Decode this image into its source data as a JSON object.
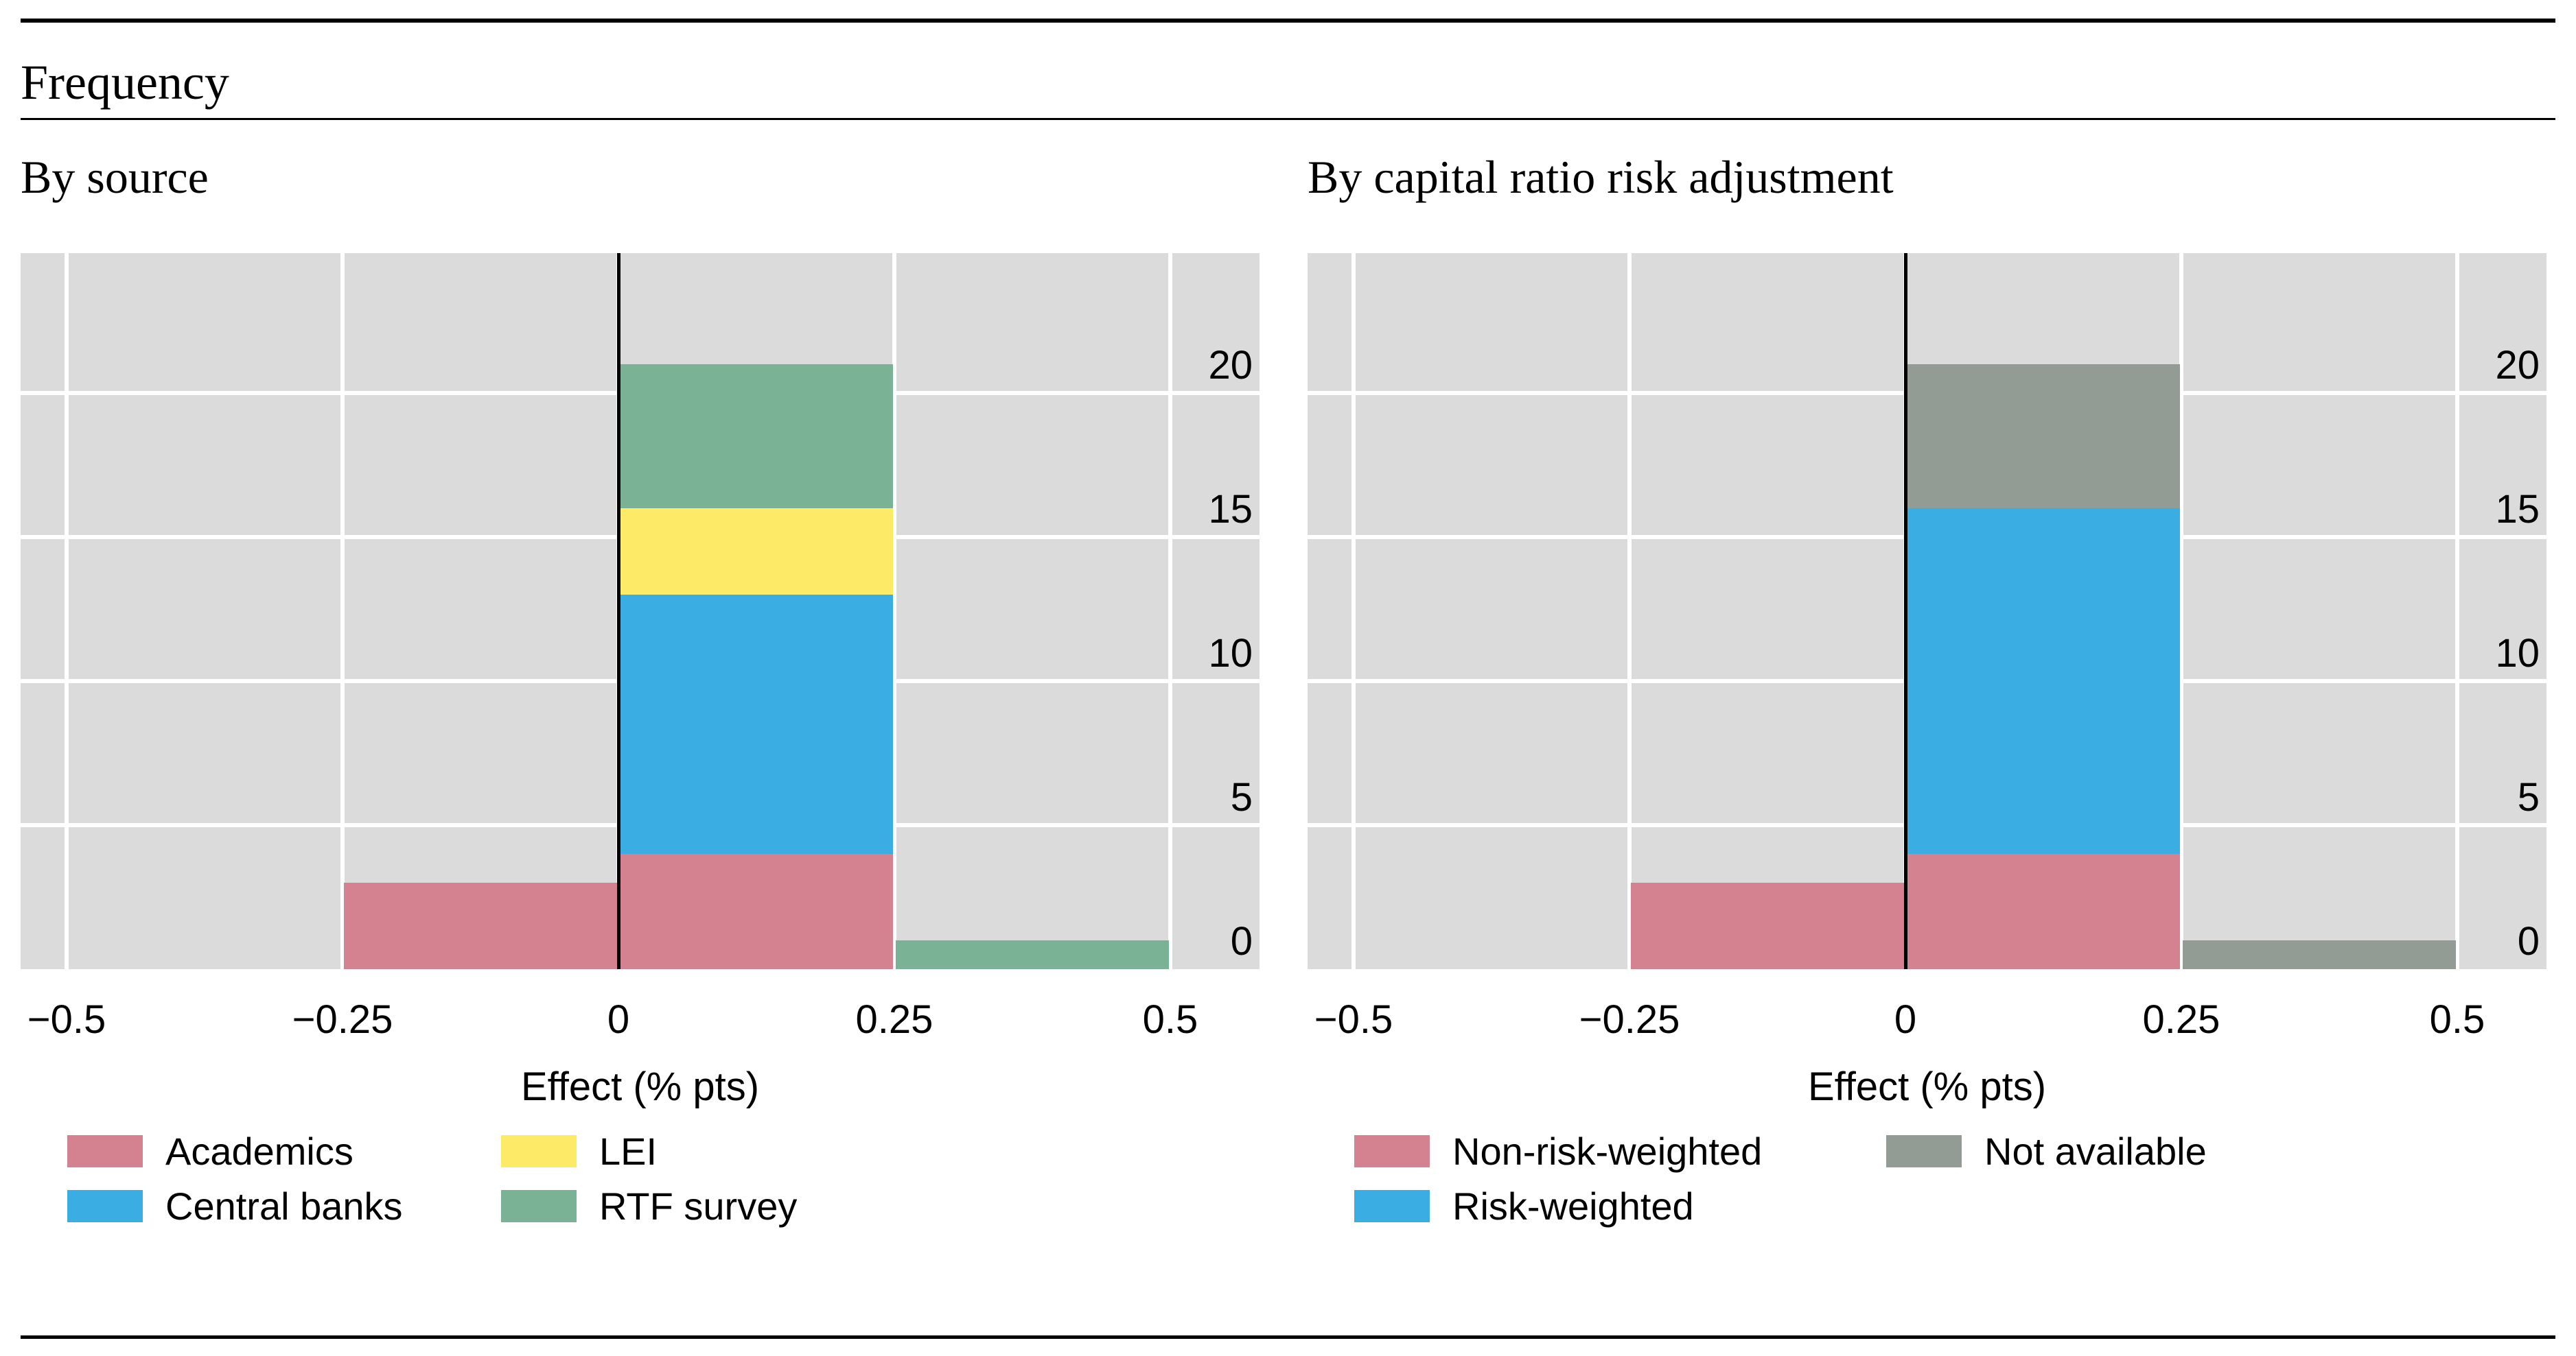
{
  "header": {
    "title": "Frequency"
  },
  "colors": {
    "plot_background": "#dbdbdb",
    "gridline": "#ffffff",
    "zero_line": "#000000",
    "academics_pink": "#d48290",
    "central_banks_blue": "#3aade2",
    "lei_yellow": "#fdea66",
    "rtf_green": "#79b294",
    "not_available_gray": "#939b95"
  },
  "chart_data": [
    {
      "type": "bar",
      "stacked": true,
      "subtitle": "By source",
      "xlabel": "Effect (% pts)",
      "x_tick_labels": [
        "−0.5",
        "−0.25",
        "0",
        "0.25",
        "0.5"
      ],
      "x_tick_values": [
        -0.5,
        -0.25,
        0,
        0.25,
        0.5
      ],
      "y_ticks": [
        0,
        5,
        10,
        15,
        20
      ],
      "ylim": [
        0,
        24.9
      ],
      "grid": true,
      "legend_position": "below",
      "bins": [
        {
          "range": [
            -0.25,
            0
          ],
          "segments": [
            {
              "name": "Academics",
              "value": 3,
              "color": "#d48290"
            }
          ]
        },
        {
          "range": [
            0,
            0.25
          ],
          "segments": [
            {
              "name": "Academics",
              "value": 4,
              "color": "#d48290"
            },
            {
              "name": "Central banks",
              "value": 9,
              "color": "#3aade2"
            },
            {
              "name": "LEI",
              "value": 3,
              "color": "#fdea66"
            },
            {
              "name": "RTF survey",
              "value": 5,
              "color": "#79b294"
            }
          ]
        },
        {
          "range": [
            0.25,
            0.5
          ],
          "segments": [
            {
              "name": "RTF survey",
              "value": 1,
              "color": "#79b294"
            }
          ]
        }
      ],
      "legend": [
        {
          "label": "Academics",
          "color": "#d48290"
        },
        {
          "label": "Central banks",
          "color": "#3aade2"
        },
        {
          "label": "LEI",
          "color": "#fdea66"
        },
        {
          "label": "RTF survey",
          "color": "#79b294"
        }
      ]
    },
    {
      "type": "bar",
      "stacked": true,
      "subtitle": "By capital ratio risk adjustment",
      "xlabel": "Effect (% pts)",
      "x_tick_labels": [
        "−0.5",
        "−0.25",
        "0",
        "0.25",
        "0.5"
      ],
      "x_tick_values": [
        -0.5,
        -0.25,
        0,
        0.25,
        0.5
      ],
      "y_ticks": [
        0,
        5,
        10,
        15,
        20
      ],
      "ylim": [
        0,
        24.9
      ],
      "grid": true,
      "legend_position": "below",
      "bins": [
        {
          "range": [
            -0.25,
            0
          ],
          "segments": [
            {
              "name": "Non-risk-weighted",
              "value": 3,
              "color": "#d48290"
            }
          ]
        },
        {
          "range": [
            0,
            0.25
          ],
          "segments": [
            {
              "name": "Non-risk-weighted",
              "value": 4,
              "color": "#d48290"
            },
            {
              "name": "Risk-weighted",
              "value": 12,
              "color": "#3aade2"
            },
            {
              "name": "Not available",
              "value": 5,
              "color": "#939b95"
            }
          ]
        },
        {
          "range": [
            0.25,
            0.5
          ],
          "segments": [
            {
              "name": "Not available",
              "value": 1,
              "color": "#939b95"
            }
          ]
        }
      ],
      "legend": [
        {
          "label": "Non-risk-weighted",
          "color": "#d48290"
        },
        {
          "label": "Risk-weighted",
          "color": "#3aade2"
        },
        {
          "label": "Not available",
          "color": "#939b95"
        }
      ]
    }
  ]
}
